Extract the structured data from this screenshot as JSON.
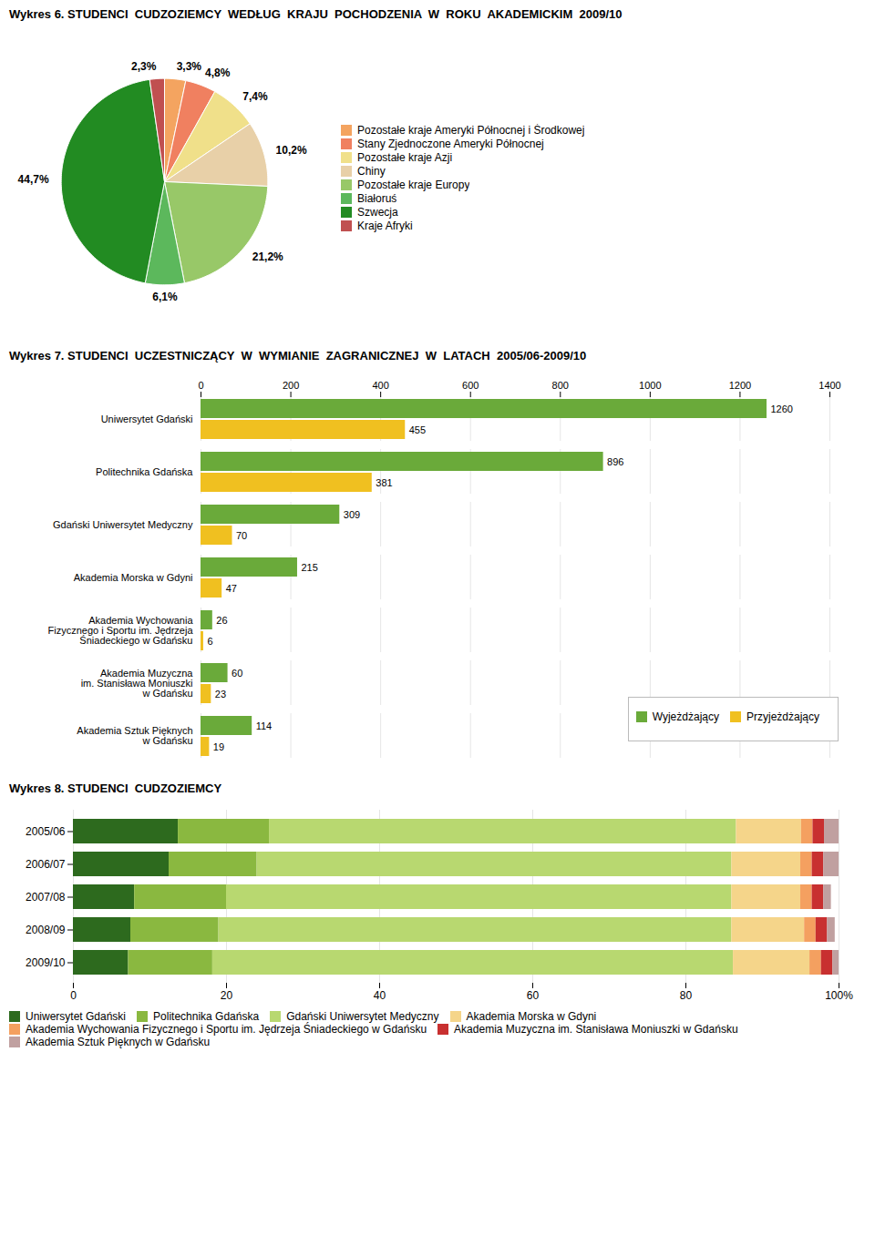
{
  "chart_data": [
    {
      "type": "pie",
      "title": "Wykres 6. STUDENCI  CUDZOZIEMCY  WEDŁUG  KRAJU  POCHODZENIA  W  ROKU  AKADEMICKIM  2009/10",
      "categories": [
        "Pozostałe kraje Ameryki Północnej i Środkowej",
        "Stany Zjednoczone Ameryki Północnej",
        "Pozostałe kraje Azji",
        "Chiny",
        "Pozostałe kraje Europy",
        "Białoruś",
        "Szwecja",
        "Kraje Afryki"
      ],
      "values": [
        3.3,
        4.8,
        7.4,
        10.2,
        21.2,
        6.1,
        44.7,
        2.3
      ],
      "value_labels": [
        "3,3%",
        "4,8%",
        "7,4%",
        "10,2%",
        "21,2%",
        "6,1%",
        "44,7%",
        "2,3%"
      ],
      "colors": [
        "#f4a460",
        "#f08060",
        "#f0e08a",
        "#e8d0a8",
        "#98c868",
        "#5cb85c",
        "#228B22",
        "#c05050"
      ],
      "data_labels": true,
      "legend": "right"
    },
    {
      "type": "bar",
      "orientation": "horizontal",
      "title": "Wykres 7. STUDENCI  UCZESTNICZĄCY  W  WYMIANIE  ZAGRANICZNEJ  W  LATACH  2005/06-2009/10",
      "categories": [
        "Uniwersytet Gdański",
        "Politechnika Gdańska",
        "Gdański Uniwersytet Medyczny",
        "Akademia Morska w Gdyni",
        "Akademia Wychowania\nFizycznego i Sportu im. Jędrzeja\nŚniadeckiego w Gdańsku",
        "Akademia Muzyczna\nim. Stanisława Moniuszki\nw Gdańsku",
        "Akademia Sztuk Pięknych\nw Gdańsku"
      ],
      "series": [
        {
          "name": "Wyjeżdżający",
          "color": "#6aaa3a",
          "values": [
            1260,
            896,
            309,
            215,
            26,
            60,
            114
          ]
        },
        {
          "name": "Przyjeżdżający",
          "color": "#f0c020",
          "values": [
            455,
            381,
            70,
            47,
            6,
            23,
            19
          ]
        }
      ],
      "xlim": [
        0,
        1400
      ],
      "xticks": [
        0,
        200,
        400,
        600,
        800,
        1000,
        1200,
        1400
      ],
      "grid": true,
      "data_labels": true,
      "legend": "lower right"
    },
    {
      "type": "bar",
      "orientation": "horizontal",
      "stacked": true,
      "title": "Wykres 8. STUDENCI  CUDZOZIEMCY",
      "categories": [
        "2005/06",
        "2006/07",
        "2007/08",
        "2008/09",
        "2009/10"
      ],
      "series": [
        {
          "name": "Uniwersytet Gdański",
          "color": "#2d6a1e",
          "values": [
            13.7,
            12.5,
            8.0,
            7.5,
            7.2
          ]
        },
        {
          "name": "Politechnika Gdańska",
          "color": "#8ab840",
          "values": [
            11.9,
            11.5,
            12.0,
            11.5,
            11.0
          ]
        },
        {
          "name": "Gdański Uniwersytet Medyczny",
          "color": "#b8d870",
          "values": [
            61.0,
            62.0,
            66.0,
            67.0,
            68.0
          ]
        },
        {
          "name": "Akademia Morska w Gdyni",
          "color": "#f5d58a",
          "values": [
            8.5,
            9.0,
            9.0,
            9.5,
            10.0
          ]
        },
        {
          "name": "Akademia Wychowania Fizycznego i Sportu im. Jędrzeja Śniadeckiego w Gdańsku",
          "color": "#f4a060",
          "values": [
            1.5,
            1.5,
            1.5,
            1.5,
            1.5
          ]
        },
        {
          "name": "Akademia Muzyczna im. Stanisława Moniuszki w Gdańsku",
          "color": "#c83030",
          "values": [
            1.5,
            1.5,
            1.5,
            1.5,
            1.5
          ]
        },
        {
          "name": "Akademia Sztuk Pięknych w Gdańsku",
          "color": "#c0a0a0",
          "values": [
            1.9,
            2.0,
            1.0,
            1.0,
            0.8
          ]
        }
      ],
      "xlim": [
        0,
        100
      ],
      "xticks": [
        0,
        20,
        40,
        60,
        80,
        {
          "value": 100,
          "label": "100%"
        }
      ],
      "grid": true,
      "legend": "bottom"
    }
  ]
}
